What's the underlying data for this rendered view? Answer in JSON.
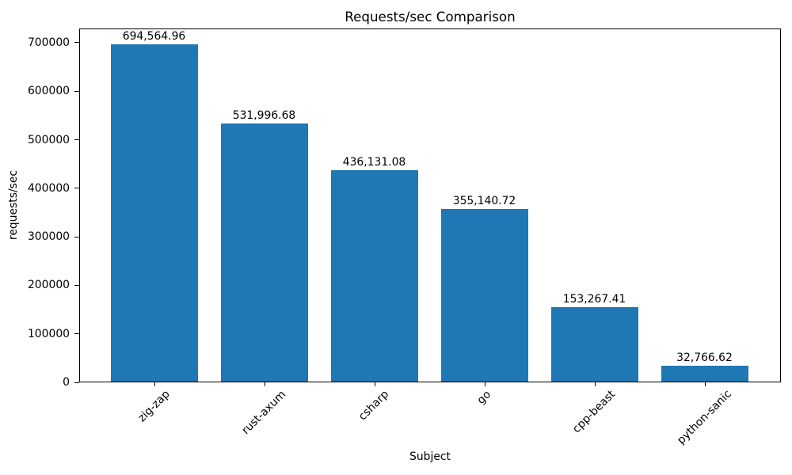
{
  "chart_data": {
    "type": "bar",
    "title": "Requests/sec Comparison",
    "xlabel": "Subject",
    "ylabel": "requests/sec",
    "categories": [
      "zig-zap",
      "rust-axum",
      "csharp",
      "go",
      "cpp-beast",
      "python-sanic"
    ],
    "values": [
      694564.96,
      531996.68,
      436131.08,
      355140.72,
      153267.41,
      32766.62
    ],
    "bar_value_labels": [
      "694,564.96",
      "531,996.68",
      "436,131.08",
      "355,140.72",
      "153,267.41",
      "32,766.62"
    ],
    "yticks": [
      0,
      100000,
      200000,
      300000,
      400000,
      500000,
      600000,
      700000
    ],
    "ytick_labels": [
      "0",
      "100000",
      "200000",
      "300000",
      "400000",
      "500000",
      "600000",
      "700000"
    ],
    "ylim": [
      0,
      729293
    ],
    "bar_color": "#1f77b4",
    "axis_color": "#000000",
    "background_color": "#ffffff",
    "grid": false,
    "legend": "none",
    "x_tick_rotation_deg": 45
  }
}
